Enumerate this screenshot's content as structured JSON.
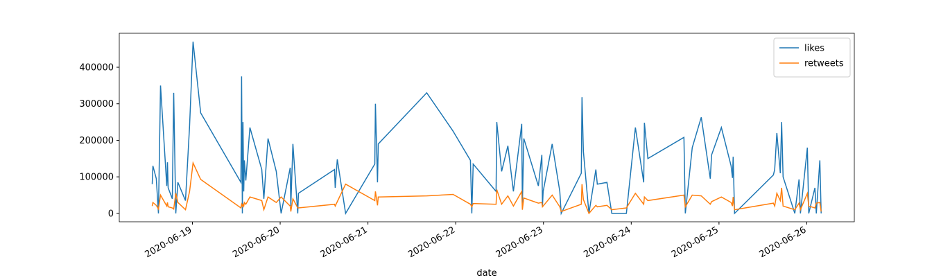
{
  "chart_data": {
    "type": "line",
    "xlabel": "date",
    "x": [
      "2020-06-18 13:00",
      "2020-06-18 13:12",
      "2020-06-18 14:08",
      "2020-06-18 14:43",
      "2020-06-18 15:17",
      "2020-06-18 16:59",
      "2020-06-18 17:11",
      "2020-06-18 17:22",
      "2020-06-18 18:30",
      "2020-06-18 18:53",
      "2020-06-18 19:27",
      "2020-06-18 20:01",
      "2020-06-18 22:06",
      "2020-06-18 23:14",
      "2020-06-19 00:11",
      "2020-06-19 02:16",
      "2020-06-19 13:16",
      "2020-06-19 13:27",
      "2020-06-19 13:39",
      "2020-06-19 13:50",
      "2020-06-19 14:02",
      "2020-06-19 14:13",
      "2020-06-19 14:36",
      "2020-06-19 15:44",
      "2020-06-19 18:58",
      "2020-06-19 19:32",
      "2020-06-19 20:40",
      "2020-06-19 22:56",
      "2020-06-20 00:16",
      "2020-06-20 02:44",
      "2020-06-20 02:55",
      "2020-06-20 03:29",
      "2020-06-20 04:49",
      "2020-06-20 05:00",
      "2020-06-20 14:52",
      "2020-06-20 15:03",
      "2020-06-20 15:37",
      "2020-06-20 17:54",
      "2020-06-21 01:52",
      "2020-06-21 02:03",
      "2020-06-21 02:37",
      "2020-06-21 02:49",
      "2020-06-21 16:05",
      "2020-06-21 23:17",
      "2020-06-22 04:01",
      "2020-06-22 04:24",
      "2020-06-22 04:47",
      "2020-06-22 11:02",
      "2020-06-22 11:14",
      "2020-06-22 12:33",
      "2020-06-22 14:16",
      "2020-06-22 15:47",
      "2020-06-22 18:03",
      "2020-06-22 18:14",
      "2020-06-22 18:37",
      "2020-06-22 22:36",
      "2020-06-22 23:33",
      "2020-06-22 23:44",
      "2020-06-22 23:55",
      "2020-06-23 02:23",
      "2020-06-23 04:28",
      "2020-06-23 04:51",
      "2020-06-23 10:21",
      "2020-06-23 10:32",
      "2020-06-23 10:55",
      "2020-06-23 12:26",
      "2020-06-23 14:20",
      "2020-06-23 14:43",
      "2020-06-23 17:22",
      "2020-06-23 18:41",
      "2020-06-23 22:40",
      "2020-06-24 01:08",
      "2020-06-24 03:25",
      "2020-06-24 03:36",
      "2020-06-24 04:33",
      "2020-06-24 14:25",
      "2020-06-24 14:47",
      "2020-06-24 16:41",
      "2020-06-24 19:09",
      "2020-06-24 21:37",
      "2020-06-24 21:59",
      "2020-06-25 00:39",
      "2020-06-25 03:18",
      "2020-06-25 03:41",
      "2020-06-25 03:52",
      "2020-06-25 04:15",
      "2020-06-25 14:52",
      "2020-06-25 15:14",
      "2020-06-25 15:49",
      "2020-06-25 16:46",
      "2020-06-25 17:08",
      "2020-06-25 17:31",
      "2020-06-25 20:44",
      "2020-06-25 21:53",
      "2020-06-25 22:16",
      "2020-06-26 00:10",
      "2020-06-26 00:32",
      "2020-06-26 02:14",
      "2020-06-26 02:37",
      "2020-06-26 03:34",
      "2020-06-26 03:56"
    ],
    "series": [
      {
        "name": "likes",
        "color": "#1f77b4",
        "values": [
          80000,
          130000,
          95000,
          0,
          350000,
          75000,
          140000,
          70000,
          40000,
          330000,
          0,
          85000,
          35000,
          240000,
          470000,
          275000,
          85000,
          375000,
          0,
          250000,
          60000,
          145000,
          90000,
          235000,
          120000,
          40000,
          205000,
          115000,
          0,
          125000,
          20000,
          190000,
          0,
          55000,
          120000,
          70000,
          148000,
          0,
          135000,
          300000,
          85000,
          190000,
          330000,
          225000,
          145000,
          0,
          135000,
          60000,
          250000,
          115000,
          185000,
          60000,
          245000,
          20000,
          205000,
          75000,
          160000,
          20000,
          60000,
          190000,
          60000,
          0,
          110000,
          318000,
          170000,
          0,
          120000,
          80000,
          85000,
          0,
          0,
          235000,
          85000,
          248000,
          150000,
          208000,
          0,
          180000,
          263000,
          95000,
          160000,
          235000,
          130000,
          97000,
          155000,
          0,
          105000,
          120000,
          220000,
          110000,
          250000,
          100000,
          0,
          93000,
          0,
          180000,
          0,
          70000,
          0,
          145000,
          0
        ]
      },
      {
        "name": "retweets",
        "color": "#ff7f0e",
        "values": [
          20000,
          30000,
          22000,
          12000,
          50000,
          20000,
          30000,
          18000,
          15000,
          12000,
          55000,
          30000,
          10000,
          60000,
          138000,
          93000,
          15000,
          25000,
          20000,
          25000,
          20000,
          30000,
          25000,
          45000,
          35000,
          10000,
          45000,
          30000,
          45000,
          20000,
          5000,
          40000,
          15000,
          15000,
          25000,
          20000,
          32000,
          80000,
          35000,
          60000,
          22000,
          45000,
          48000,
          52000,
          25000,
          18000,
          27000,
          25000,
          65000,
          25000,
          48000,
          20000,
          60000,
          10000,
          42000,
          28000,
          30000,
          18000,
          20000,
          50000,
          18000,
          5000,
          25000,
          80000,
          38000,
          0,
          22000,
          18000,
          22000,
          10000,
          15000,
          55000,
          25000,
          45000,
          35000,
          50000,
          18000,
          50000,
          48000,
          25000,
          32000,
          45000,
          30000,
          20000,
          45000,
          10000,
          28000,
          20000,
          55000,
          35000,
          70000,
          20000,
          10000,
          28000,
          10000,
          55000,
          20000,
          15000,
          28000,
          30000,
          5000
        ]
      }
    ],
    "xlim": [
      "2020-06-18 04:00",
      "2020-06-26 13:00"
    ],
    "xticks": [
      "2020-06-19",
      "2020-06-20",
      "2020-06-21",
      "2020-06-22",
      "2020-06-23",
      "2020-06-24",
      "2020-06-25",
      "2020-06-26"
    ],
    "ylim": [
      -23000,
      493000
    ],
    "yticks": [
      0,
      100000,
      200000,
      300000,
      400000
    ],
    "legend": "upper right"
  }
}
